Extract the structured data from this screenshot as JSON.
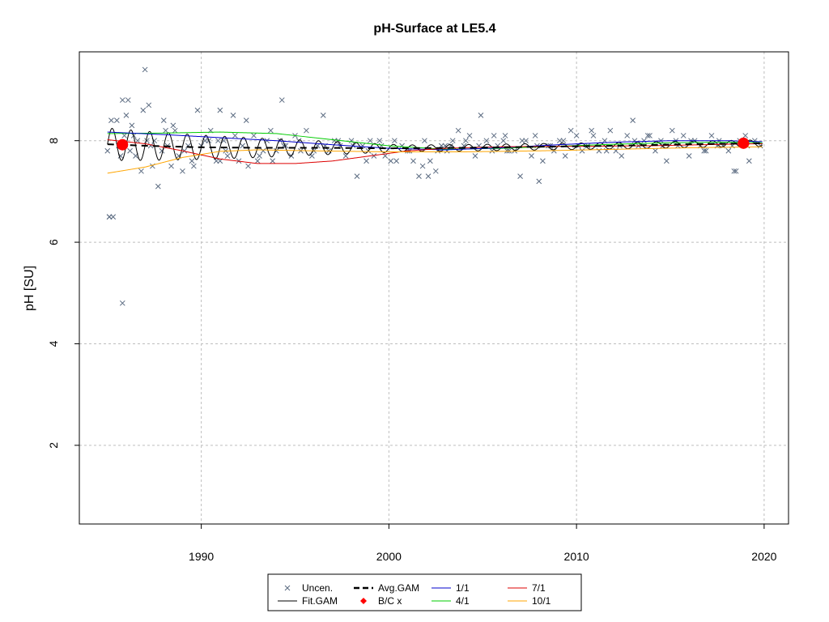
{
  "chart_data": {
    "type": "scatter",
    "title": "pH-Surface at LE5.4",
    "xlabel": "",
    "ylabel": "pH [SU]",
    "xlim": [
      1983.5,
      2021.3
    ],
    "ylim": [
      0.45,
      9.75
    ],
    "x_ticks": [
      1990,
      2000,
      2010,
      2020
    ],
    "y_ticks": [
      2,
      4,
      6,
      8
    ],
    "grid": true,
    "legend_position": "bottom",
    "colors": {
      "points": "#5a6a80",
      "fit_gam": "#000000",
      "avg_gam": "#000000",
      "bc": "#ff0000",
      "d1_1": "#0000cc",
      "d4_1": "#00cc00",
      "d7_1": "#dd0000",
      "d10_1": "#ffa500",
      "grid": "#bebebe"
    },
    "legend": [
      {
        "label": "Uncen.",
        "key": "points"
      },
      {
        "label": "Avg.GAM",
        "key": "avg_gam"
      },
      {
        "label": "1/1",
        "key": "d1_1"
      },
      {
        "label": "7/1",
        "key": "d7_1"
      },
      {
        "label": "Fit.GAM",
        "key": "fit_gam"
      },
      {
        "label": "B/C x",
        "key": "bc"
      },
      {
        "label": "4/1",
        "key": "d4_1"
      },
      {
        "label": "10/1",
        "key": "d10_1"
      }
    ],
    "series": [
      {
        "name": "Uncen.",
        "kind": "points",
        "x": [
          1985.0,
          1985.1,
          1985.3,
          1985.5,
          1985.7,
          1985.8,
          1985.9,
          1986.0,
          1986.1,
          1986.2,
          1986.3,
          1986.5,
          1986.6,
          1986.8,
          1987.0,
          1987.1,
          1987.2,
          1987.4,
          1987.5,
          1987.7,
          1987.9,
          1988.0,
          1988.2,
          1988.4,
          1988.6,
          1988.8,
          1989.0,
          1989.3,
          1989.5,
          1989.8,
          1990.0,
          1990.2,
          1990.5,
          1990.8,
          1991.0,
          1991.2,
          1991.4,
          1991.7,
          1992.0,
          1992.2,
          1992.5,
          1992.8,
          1993.0,
          1993.3,
          1993.5,
          1993.8,
          1994.0,
          1994.2,
          1994.5,
          1994.8,
          1995.0,
          1995.3,
          1995.6,
          1995.9,
          1996.2,
          1996.5,
          1996.8,
          1997.1,
          1997.4,
          1997.7,
          1998.0,
          1998.3,
          1998.6,
          1998.9,
          1999.2,
          1999.5,
          1999.8,
          2000.1,
          2000.4,
          2000.7,
          2001.0,
          2001.3,
          2001.6,
          2001.9,
          2002.2,
          2002.5,
          2002.8,
          2003.1,
          2003.4,
          2003.7,
          2004.0,
          2004.3,
          2004.6,
          2004.9,
          2005.2,
          2005.5,
          2005.8,
          2006.1,
          2006.4,
          2006.7,
          2007.0,
          2007.3,
          2007.6,
          2007.9,
          2008.2,
          2008.5,
          2008.8,
          2009.1,
          2009.4,
          2009.7,
          2010.0,
          2010.3,
          2010.6,
          2010.9,
          2011.2,
          2011.5,
          2011.8,
          2012.1,
          2012.4,
          2012.7,
          2013.0,
          2013.3,
          2013.6,
          2013.9,
          2014.2,
          2014.5,
          2014.8,
          2015.1,
          2015.4,
          2015.7,
          2016.0,
          2016.3,
          2016.6,
          2016.9,
          2017.2,
          2017.5,
          2017.8,
          2018.1,
          2018.4,
          2018.7,
          2019.0,
          2019.2,
          2019.5,
          2019.8,
          1985.2,
          1985.6,
          1986.4,
          1986.9,
          1987.3,
          1988.1,
          1988.5,
          1989.1,
          1989.6,
          1990.4,
          1990.9,
          1991.3,
          1991.8,
          1992.4,
          1993.1,
          1993.7,
          1994.4,
          1995.2,
          1996.0,
          1996.6,
          1997.3,
          1998.1,
          1998.8,
          1999.6,
          2000.3,
          2001.1,
          2001.8,
          2002.6,
          2003.3,
          2004.1,
          2004.8,
          2005.6,
          2006.3,
          2007.1,
          2007.8,
          2008.6,
          2009.3,
          2010.1,
          2010.8,
          2011.6,
          2012.3,
          2013.1,
          2013.8,
          2014.6,
          2015.3,
          2016.1,
          2016.8,
          2017.6,
          2018.3,
          2019.1,
          1994.3,
          1985.8,
          1985.1,
          2006.2,
          2018.5,
          1991.0,
          2003.0,
          2002.1,
          2008.0,
          1999.0
        ],
        "y": [
          7.8,
          6.5,
          6.5,
          8.4,
          7.7,
          8.8,
          8.1,
          8.5,
          8.8,
          7.8,
          8.3,
          7.7,
          8.0,
          7.4,
          9.4,
          8.0,
          8.7,
          7.5,
          8.0,
          7.1,
          7.8,
          8.4,
          7.9,
          7.5,
          8.2,
          7.7,
          7.4,
          7.9,
          7.6,
          8.6,
          7.9,
          8.0,
          8.2,
          7.6,
          8.6,
          8.0,
          7.7,
          8.5,
          7.6,
          7.9,
          7.5,
          8.1,
          7.6,
          7.8,
          8.0,
          7.6,
          7.8,
          8.0,
          7.9,
          7.7,
          8.1,
          7.8,
          8.2,
          7.7,
          7.9,
          8.5,
          7.8,
          8.0,
          7.9,
          7.7,
          8.0,
          7.3,
          7.9,
          7.8,
          7.7,
          8.0,
          7.7,
          7.6,
          7.6,
          7.9,
          7.8,
          7.6,
          7.3,
          8.0,
          7.6,
          7.4,
          7.9,
          7.8,
          8.0,
          8.2,
          7.9,
          8.1,
          7.7,
          8.5,
          8.0,
          7.8,
          7.9,
          8.0,
          7.8,
          7.8,
          7.3,
          8.0,
          7.7,
          7.9,
          7.6,
          7.9,
          7.8,
          8.0,
          7.7,
          8.2,
          8.1,
          7.8,
          7.9,
          8.1,
          7.8,
          8.0,
          8.2,
          7.8,
          7.7,
          8.1,
          8.4,
          7.9,
          8.0,
          8.1,
          7.8,
          8.0,
          7.6,
          8.2,
          7.9,
          8.1,
          7.7,
          8.0,
          7.9,
          7.8,
          8.1,
          7.9,
          7.9,
          7.8,
          7.4,
          8.0,
          8.1,
          7.6,
          8.0,
          7.9,
          8.4,
          7.9,
          8.1,
          8.6,
          7.9,
          8.2,
          8.3,
          7.8,
          7.5,
          8.0,
          8.0,
          7.8,
          8.1,
          8.4,
          7.7,
          8.2,
          7.9,
          8.0,
          7.8,
          7.9,
          8.0,
          7.9,
          7.6,
          7.9,
          8.0,
          7.8,
          7.5,
          7.8,
          7.9,
          8.0,
          7.9,
          8.1,
          7.8,
          8.0,
          8.1,
          7.9,
          8.0,
          7.9,
          8.2,
          7.8,
          7.9,
          8.0,
          8.1,
          7.9,
          8.0,
          8.0,
          7.8,
          8.0,
          7.9,
          7.9,
          8.8,
          4.8,
          6.5,
          8.1,
          7.4,
          7.6,
          7.9,
          7.3,
          7.2,
          8.0
        ]
      },
      {
        "name": "Fit.GAM",
        "kind": "seasonal",
        "amplitude": 0.32,
        "period": 1.0
      },
      {
        "name": "Avg.GAM",
        "kind": "line",
        "x": [
          1985.0,
          1987.0,
          1990.0,
          1993.0,
          1996.0,
          2000.0,
          2004.0,
          2008.0,
          2012.0,
          2016.0,
          2019.9
        ],
        "y": [
          7.93,
          7.9,
          7.87,
          7.86,
          7.86,
          7.85,
          7.86,
          7.88,
          7.9,
          7.93,
          7.95
        ]
      },
      {
        "name": "1/1",
        "kind": "line",
        "x": [
          1985.0,
          1988.0,
          1991.0,
          1994.0,
          1997.0,
          2000.0,
          2003.0,
          2006.0,
          2009.0,
          2012.0,
          2015.0,
          2018.0,
          2019.9
        ],
        "y": [
          8.17,
          8.12,
          8.06,
          8.0,
          7.92,
          7.85,
          7.82,
          7.86,
          7.92,
          7.97,
          8.0,
          8.0,
          7.98
        ]
      },
      {
        "name": "4/1",
        "kind": "line",
        "x": [
          1985.0,
          1988.0,
          1991.0,
          1994.0,
          1997.0,
          2000.0,
          2003.0,
          2006.0,
          2009.0,
          2012.0,
          2015.0,
          2018.0,
          2019.9
        ],
        "y": [
          8.14,
          8.15,
          8.17,
          8.14,
          8.02,
          7.9,
          7.83,
          7.85,
          7.89,
          7.93,
          7.96,
          7.97,
          7.96
        ]
      },
      {
        "name": "7/1",
        "kind": "line",
        "x": [
          1985.0,
          1987.0,
          1989.0,
          1991.0,
          1993.0,
          1995.0,
          1997.0,
          1999.0,
          2001.0,
          2003.0,
          2006.0,
          2010.0,
          2014.0,
          2018.0,
          2019.9
        ],
        "y": [
          8.02,
          7.94,
          7.8,
          7.64,
          7.55,
          7.55,
          7.6,
          7.7,
          7.8,
          7.85,
          7.88,
          7.89,
          7.9,
          7.93,
          7.94
        ]
      },
      {
        "name": "10/1",
        "kind": "line",
        "x": [
          1985.0,
          1987.0,
          1989.0,
          1991.0,
          1993.0,
          1996.0,
          2000.0,
          2004.0,
          2008.0,
          2012.0,
          2016.0,
          2019.9
        ],
        "y": [
          7.36,
          7.48,
          7.67,
          7.79,
          7.82,
          7.8,
          7.78,
          7.78,
          7.8,
          7.83,
          7.86,
          7.88
        ]
      },
      {
        "name": "B/C x",
        "kind": "marker",
        "x": [
          1985.8,
          2018.9
        ],
        "y": [
          7.92,
          7.95
        ]
      }
    ]
  }
}
